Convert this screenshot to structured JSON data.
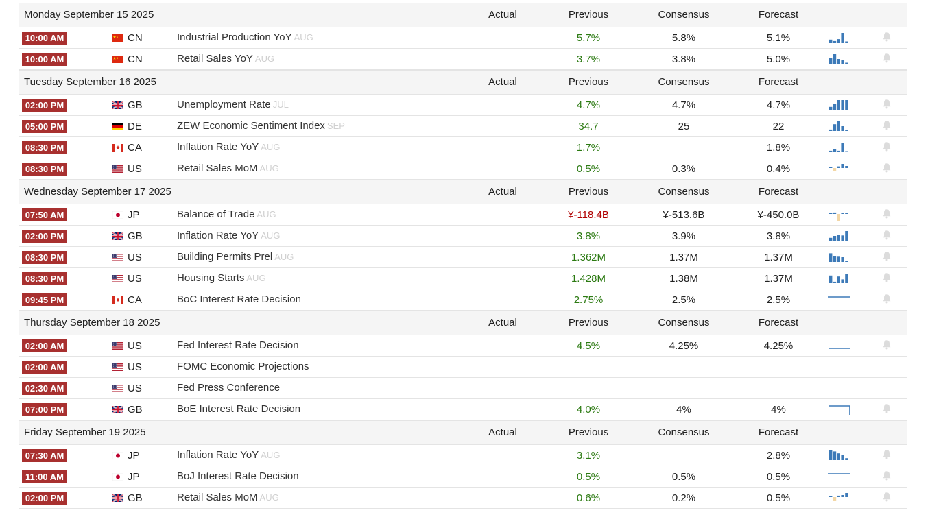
{
  "columns": {
    "actual": "Actual",
    "previous": "Previous",
    "consensus": "Consensus",
    "forecast": "Forecast"
  },
  "days": [
    {
      "date": "Monday September 15 2025",
      "events": [
        {
          "time": "10:00 AM",
          "country": "CN",
          "event": "Industrial Production YoY",
          "ref": "AUG",
          "actual": "",
          "previous": "5.7%",
          "consensus": "5.8%",
          "forecast": "5.1%",
          "trend": "bars",
          "bars": [
            0.3,
            0.15,
            0.35,
            1.0,
            0.1
          ]
        },
        {
          "time": "10:00 AM",
          "country": "CN",
          "event": "Retail Sales YoY",
          "ref": "AUG",
          "actual": "",
          "previous": "3.7%",
          "consensus": "3.8%",
          "forecast": "5.0%",
          "trend": "bars",
          "bars": [
            0.6,
            1.0,
            0.5,
            0.4,
            0.1
          ]
        }
      ]
    },
    {
      "date": "Tuesday September 16 2025",
      "events": [
        {
          "time": "02:00 PM",
          "country": "GB",
          "event": "Unemployment Rate",
          "ref": "JUL",
          "actual": "",
          "previous": "4.7%",
          "consensus": "4.7%",
          "forecast": "4.7%",
          "trend": "bars",
          "bars": [
            0.3,
            0.6,
            1.0,
            1.0,
            1.0
          ]
        },
        {
          "time": "05:00 PM",
          "country": "DE",
          "event": "ZEW Economic Sentiment Index",
          "ref": "SEP",
          "actual": "",
          "previous": "34.7",
          "consensus": "25",
          "forecast": "22",
          "trend": "bars",
          "bars": [
            0.15,
            0.7,
            1.0,
            0.5,
            0.1
          ]
        },
        {
          "time": "08:30 PM",
          "country": "CA",
          "event": "Inflation Rate YoY",
          "ref": "AUG",
          "actual": "",
          "previous": "1.7%",
          "consensus": "",
          "forecast": "1.8%",
          "trend": "bars",
          "bars": [
            0.15,
            0.3,
            0.15,
            1.0,
            0.1
          ]
        },
        {
          "time": "08:30 PM",
          "country": "US",
          "event": "Retail Sales MoM",
          "ref": "AUG",
          "actual": "",
          "previous": "0.5%",
          "consensus": "0.3%",
          "forecast": "0.4%",
          "trend": "posneg",
          "bars": [
            0.1,
            -0.5,
            0.4,
            1.0,
            0.5
          ]
        }
      ]
    },
    {
      "date": "Wednesday September 17 2025",
      "events": [
        {
          "time": "07:50 AM",
          "country": "JP",
          "event": "Balance of Trade",
          "ref": "AUG",
          "actual": "",
          "previous": "¥-118.4B",
          "neg": true,
          "consensus": "¥-513.6B",
          "forecast": "¥-450.0B",
          "trend": "posneg",
          "bars": [
            0.1,
            0.35,
            -1.0,
            0.2,
            0.1
          ]
        },
        {
          "time": "02:00 PM",
          "country": "GB",
          "event": "Inflation Rate YoY",
          "ref": "AUG",
          "actual": "",
          "previous": "3.8%",
          "consensus": "3.9%",
          "forecast": "3.8%",
          "trend": "bars",
          "bars": [
            0.3,
            0.5,
            0.6,
            0.55,
            1.0
          ]
        },
        {
          "time": "08:30 PM",
          "country": "US",
          "event": "Building Permits Prel",
          "ref": "AUG",
          "actual": "",
          "previous": "1.362M",
          "consensus": "1.37M",
          "forecast": "1.37M",
          "trend": "bars",
          "bars": [
            0.9,
            0.6,
            0.55,
            0.5,
            0.1
          ]
        },
        {
          "time": "08:30 PM",
          "country": "US",
          "event": "Housing Starts",
          "ref": "AUG",
          "actual": "",
          "previous": "1.428M",
          "consensus": "1.38M",
          "forecast": "1.37M",
          "trend": "bars",
          "bars": [
            0.8,
            0.15,
            0.7,
            0.4,
            1.0
          ]
        },
        {
          "time": "09:45 PM",
          "country": "CA",
          "event": "BoC Interest Rate Decision",
          "ref": "",
          "actual": "",
          "previous": "2.75%",
          "consensus": "2.5%",
          "forecast": "2.5%",
          "trend": "flat"
        }
      ]
    },
    {
      "date": "Thursday September 18 2025",
      "events": [
        {
          "time": "02:00 AM",
          "country": "US",
          "event": "Fed Interest Rate Decision",
          "ref": "",
          "actual": "",
          "previous": "4.5%",
          "consensus": "4.25%",
          "forecast": "4.25%",
          "trend": "flat-low"
        },
        {
          "time": "02:00 AM",
          "country": "US",
          "event": "FOMC Economic Projections",
          "ref": "",
          "actual": "",
          "previous": "",
          "consensus": "",
          "forecast": "",
          "trend": "none"
        },
        {
          "time": "02:30 AM",
          "country": "US",
          "event": "Fed Press Conference",
          "ref": "",
          "actual": "",
          "previous": "",
          "consensus": "",
          "forecast": "",
          "trend": "none"
        },
        {
          "time": "07:00 PM",
          "country": "GB",
          "event": "BoE Interest Rate Decision",
          "ref": "",
          "actual": "",
          "previous": "4.0%",
          "consensus": "4%",
          "forecast": "4%",
          "trend": "step"
        }
      ]
    },
    {
      "date": "Friday September 19 2025",
      "events": [
        {
          "time": "07:30 AM",
          "country": "JP",
          "event": "Inflation Rate YoY",
          "ref": "AUG",
          "actual": "",
          "previous": "3.1%",
          "consensus": "",
          "forecast": "2.8%",
          "trend": "bars",
          "bars": [
            1.0,
            0.9,
            0.7,
            0.5,
            0.2
          ]
        },
        {
          "time": "11:00 AM",
          "country": "JP",
          "event": "BoJ Interest Rate Decision",
          "ref": "",
          "actual": "",
          "previous": "0.5%",
          "consensus": "0.5%",
          "forecast": "0.5%",
          "trend": "flat"
        },
        {
          "time": "02:00 PM",
          "country": "GB",
          "event": "Retail Sales MoM",
          "ref": "AUG",
          "actual": "",
          "previous": "0.6%",
          "consensus": "0.2%",
          "forecast": "0.5%",
          "trend": "posneg",
          "bars": [
            0.15,
            -0.5,
            0.35,
            0.5,
            1.0
          ]
        }
      ]
    }
  ],
  "colors": {
    "time_badge": "#a8302f",
    "positive": "#2c7a12",
    "negative": "#b00000",
    "spark_bar": "#3d7ab8",
    "spark_neg": "#f3d7a6"
  }
}
